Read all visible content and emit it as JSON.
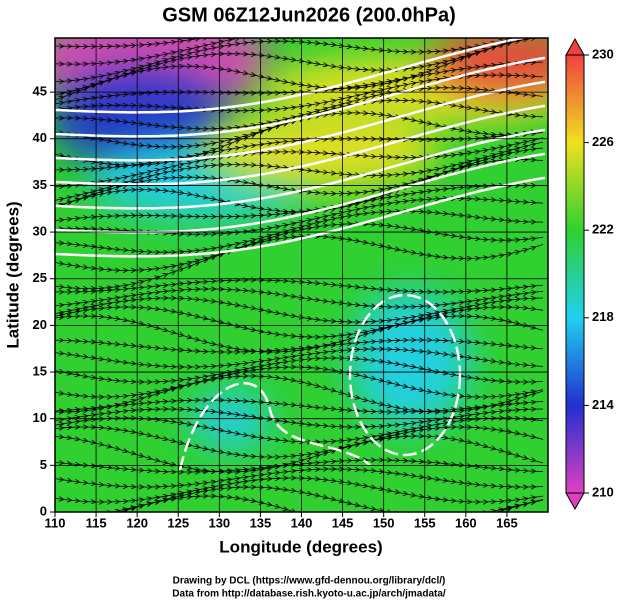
{
  "chart_data": {
    "type": "map",
    "title": "GSM 06Z12Jun2026 (200.0hPa)",
    "x_label": "Longitude (degrees)",
    "y_label": "Latitude  (degrees)",
    "xlim": [
      110,
      170
    ],
    "ylim": [
      0,
      50.8
    ],
    "xticks": [
      110,
      115,
      120,
      125,
      130,
      135,
      140,
      145,
      150,
      155,
      160,
      165
    ],
    "yticks": [
      0,
      5,
      10,
      15,
      20,
      25,
      30,
      35,
      40,
      45
    ],
    "grid": true,
    "colorbar": {
      "lim": [
        210,
        230
      ],
      "ticks": [
        210,
        214,
        218,
        222,
        226,
        230
      ],
      "colors": [
        "#e040c0",
        "#2030d0",
        "#20d0f0",
        "#30d030",
        "#f0e020",
        "#f04040"
      ]
    },
    "credits": [
      "Drawing by DCL (https://www.gfd-dennou.org/library/dcl/)",
      "Data from http://database.rish.kyoto-u.ac.jp/arch/jmadata/"
    ]
  }
}
